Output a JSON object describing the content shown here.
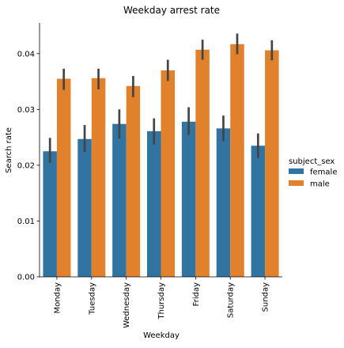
{
  "chart_data": {
    "type": "bar",
    "title": "Weekday arrest rate",
    "xlabel": "Weekday",
    "ylabel": "Search rate",
    "ylim": [
      0,
      0.0455
    ],
    "yticks": [
      "0.00",
      "0.01",
      "0.02",
      "0.03",
      "0.04"
    ],
    "ytick_values": [
      0,
      0.01,
      0.02,
      0.03,
      0.04
    ],
    "categories": [
      "Monday",
      "Tuesday",
      "Wednesday",
      "Thursday",
      "Friday",
      "Saturday",
      "Sunday"
    ],
    "legend_title": "subject_sex",
    "legend_position": "right",
    "grid": false,
    "series": [
      {
        "name": "female",
        "color": "#3274a1",
        "values": [
          0.0225,
          0.0247,
          0.0274,
          0.0261,
          0.0278,
          0.0266,
          0.0235
        ],
        "err_low": [
          0.0204,
          0.0224,
          0.0248,
          0.0237,
          0.0254,
          0.0243,
          0.0213
        ],
        "err_high": [
          0.0249,
          0.0272,
          0.03,
          0.0284,
          0.0304,
          0.0289,
          0.0257
        ]
      },
      {
        "name": "male",
        "color": "#e1812c",
        "values": [
          0.0355,
          0.0356,
          0.0342,
          0.037,
          0.0407,
          0.0417,
          0.0406
        ],
        "err_low": [
          0.0335,
          0.0336,
          0.0322,
          0.0351,
          0.0389,
          0.0399,
          0.0388
        ],
        "err_high": [
          0.0373,
          0.0373,
          0.036,
          0.0389,
          0.0425,
          0.0436,
          0.0424
        ]
      }
    ]
  }
}
